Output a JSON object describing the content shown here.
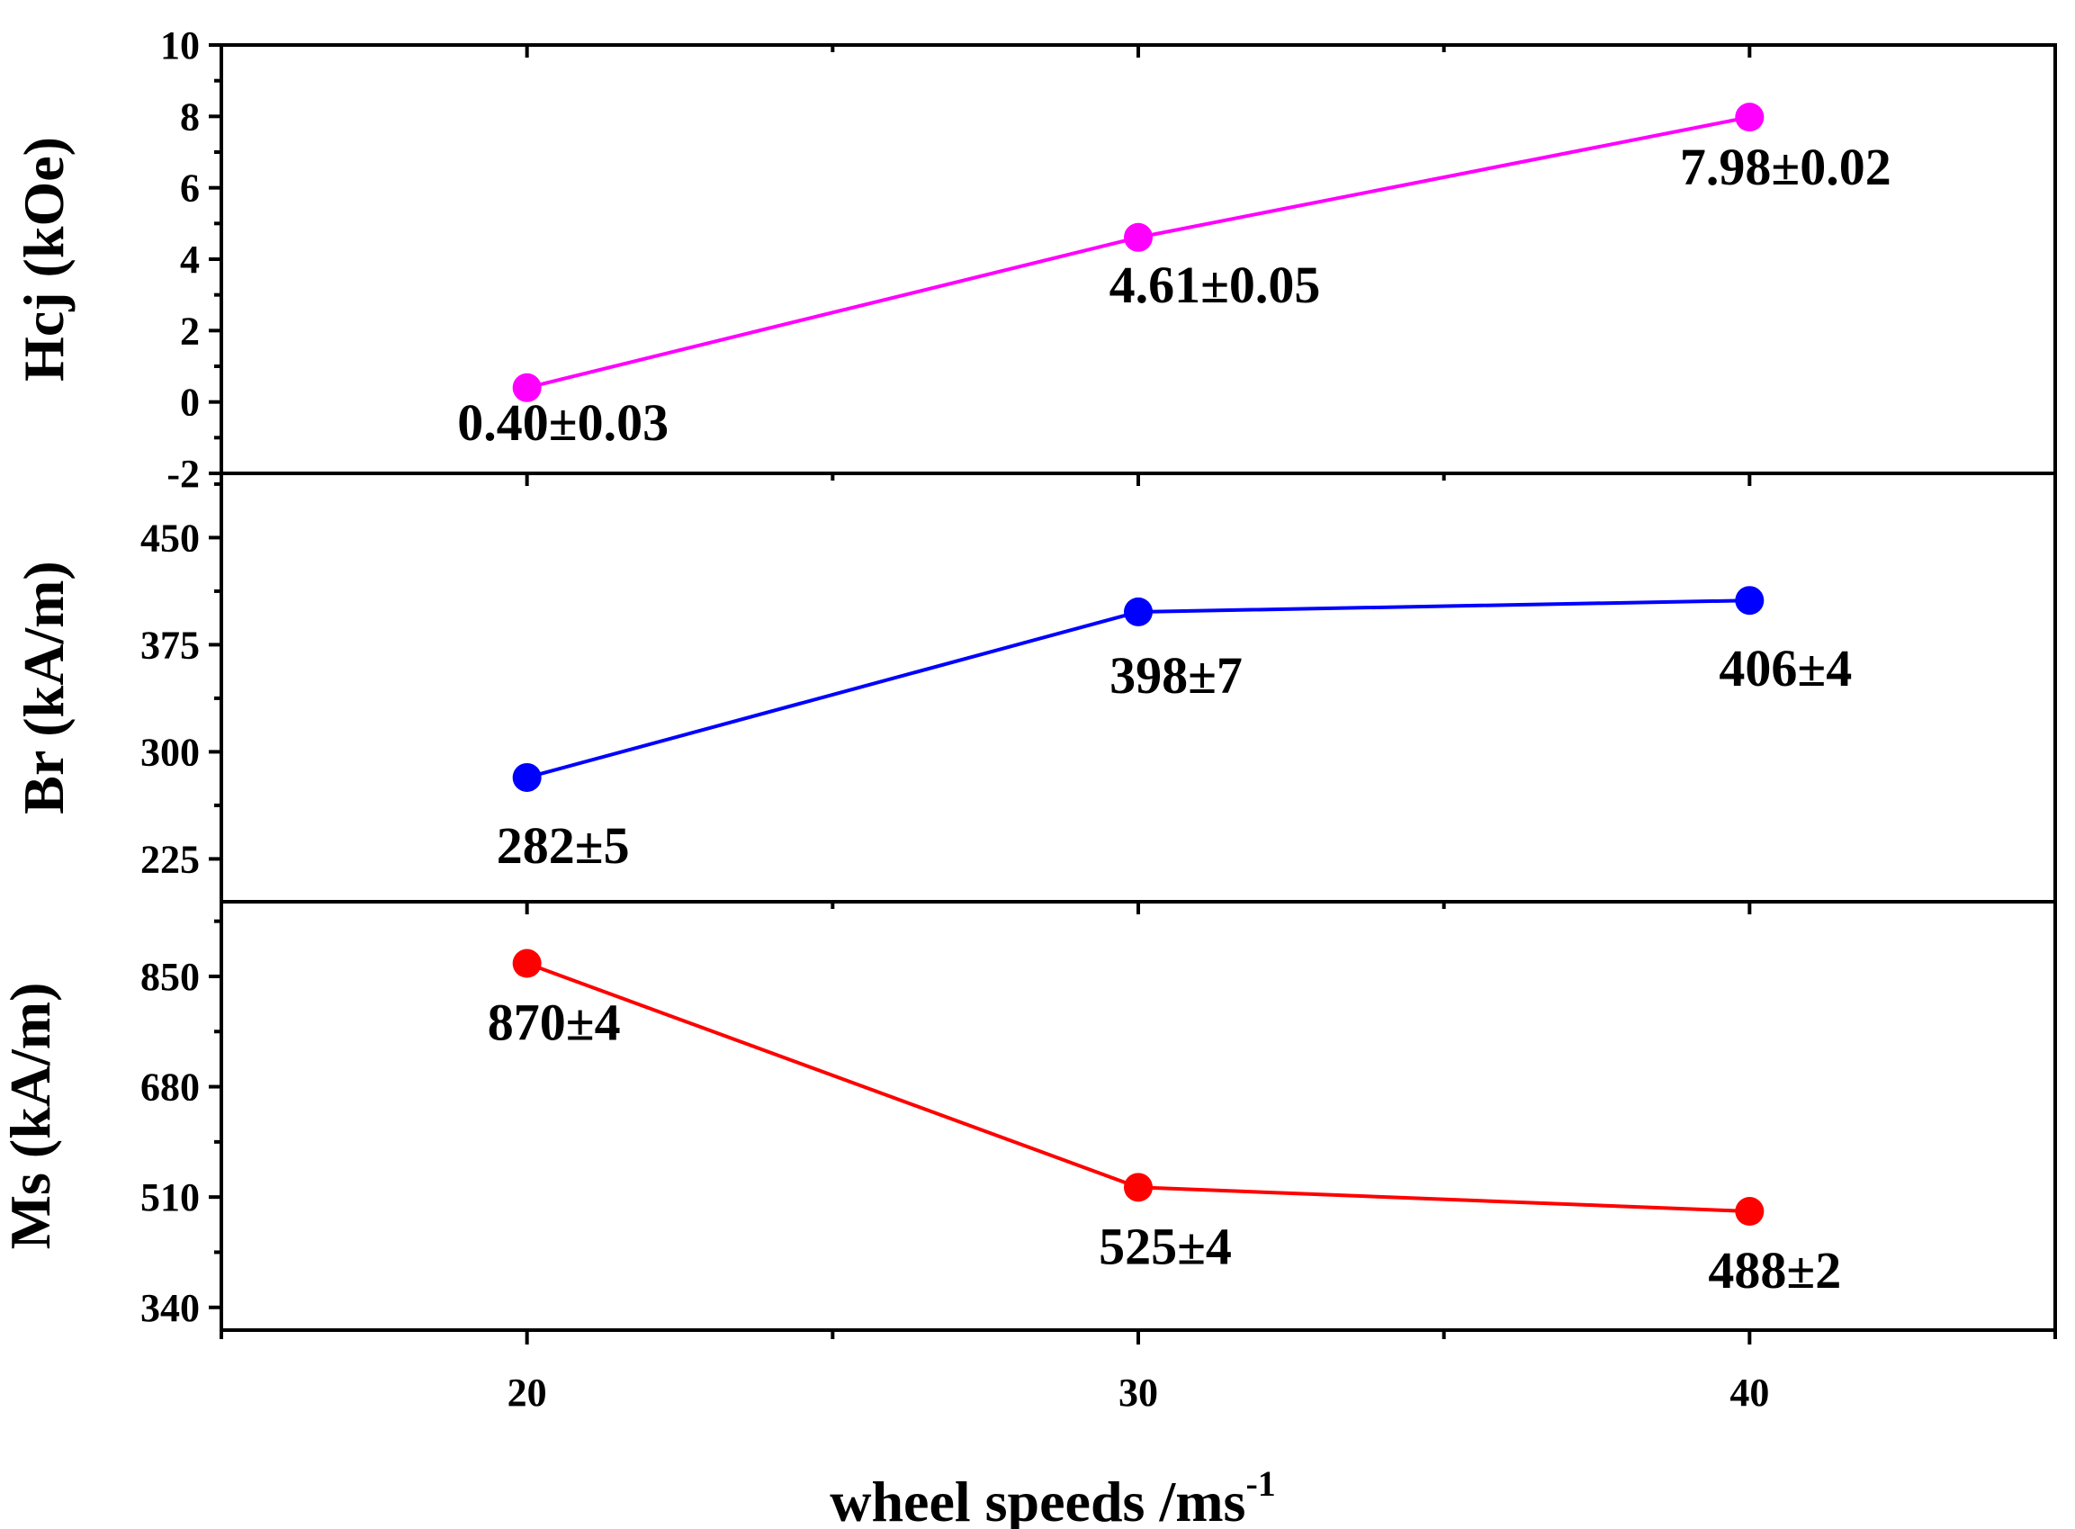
{
  "chart_data": {
    "type": "line",
    "layout": "stacked-panels-shared-x",
    "xlabel_base": "wheel speeds /ms",
    "xlabel_sup": "-1",
    "xlim": [
      15,
      45
    ],
    "x_ticks": [
      20,
      30,
      40
    ],
    "x_tick_labels": [
      "20",
      "30",
      "40"
    ],
    "x_minor_ticks": [
      15,
      25,
      35,
      45
    ],
    "panels": [
      {
        "ylabel": "Hcj (kOe)",
        "ylim": [
          -2,
          10
        ],
        "y_ticks": [
          -2,
          0,
          2,
          4,
          6,
          8,
          10
        ],
        "y_tick_labels": [
          "-2",
          "0",
          "2",
          "4",
          "6",
          "8",
          "10"
        ],
        "y_minor_ticks": [
          -1,
          1,
          3,
          5,
          7,
          9
        ],
        "color": "#ff00ff",
        "x": [
          20,
          30,
          40
        ],
        "values": [
          0.4,
          4.61,
          7.98
        ],
        "labels": [
          "0.40±0.03",
          "4.61±0.05",
          "7.98±0.02"
        ]
      },
      {
        "ylabel": "Br (kA/m)",
        "ylim": [
          195,
          495
        ],
        "y_ticks": [
          225,
          300,
          375,
          450
        ],
        "y_tick_labels": [
          "225",
          "300",
          "375",
          "450"
        ],
        "y_minor_ticks": [
          262.5,
          337.5,
          412.5,
          487.5
        ],
        "color": "#0000ff",
        "x": [
          20,
          30,
          40
        ],
        "values": [
          282,
          398,
          406
        ],
        "labels": [
          "282±5",
          "398±7",
          "406±4"
        ]
      },
      {
        "ylabel": "Ms (kA/m)",
        "ylim": [
          305,
          965
        ],
        "y_ticks": [
          340,
          510,
          680,
          850
        ],
        "y_tick_labels": [
          "340",
          "510",
          "680",
          "850"
        ],
        "y_minor_ticks": [
          425,
          595,
          765,
          935
        ],
        "color": "#ff0000",
        "x": [
          20,
          30,
          40
        ],
        "values": [
          870,
          525,
          488
        ],
        "labels": [
          "870±4",
          "525±4",
          "488±2"
        ]
      }
    ]
  }
}
